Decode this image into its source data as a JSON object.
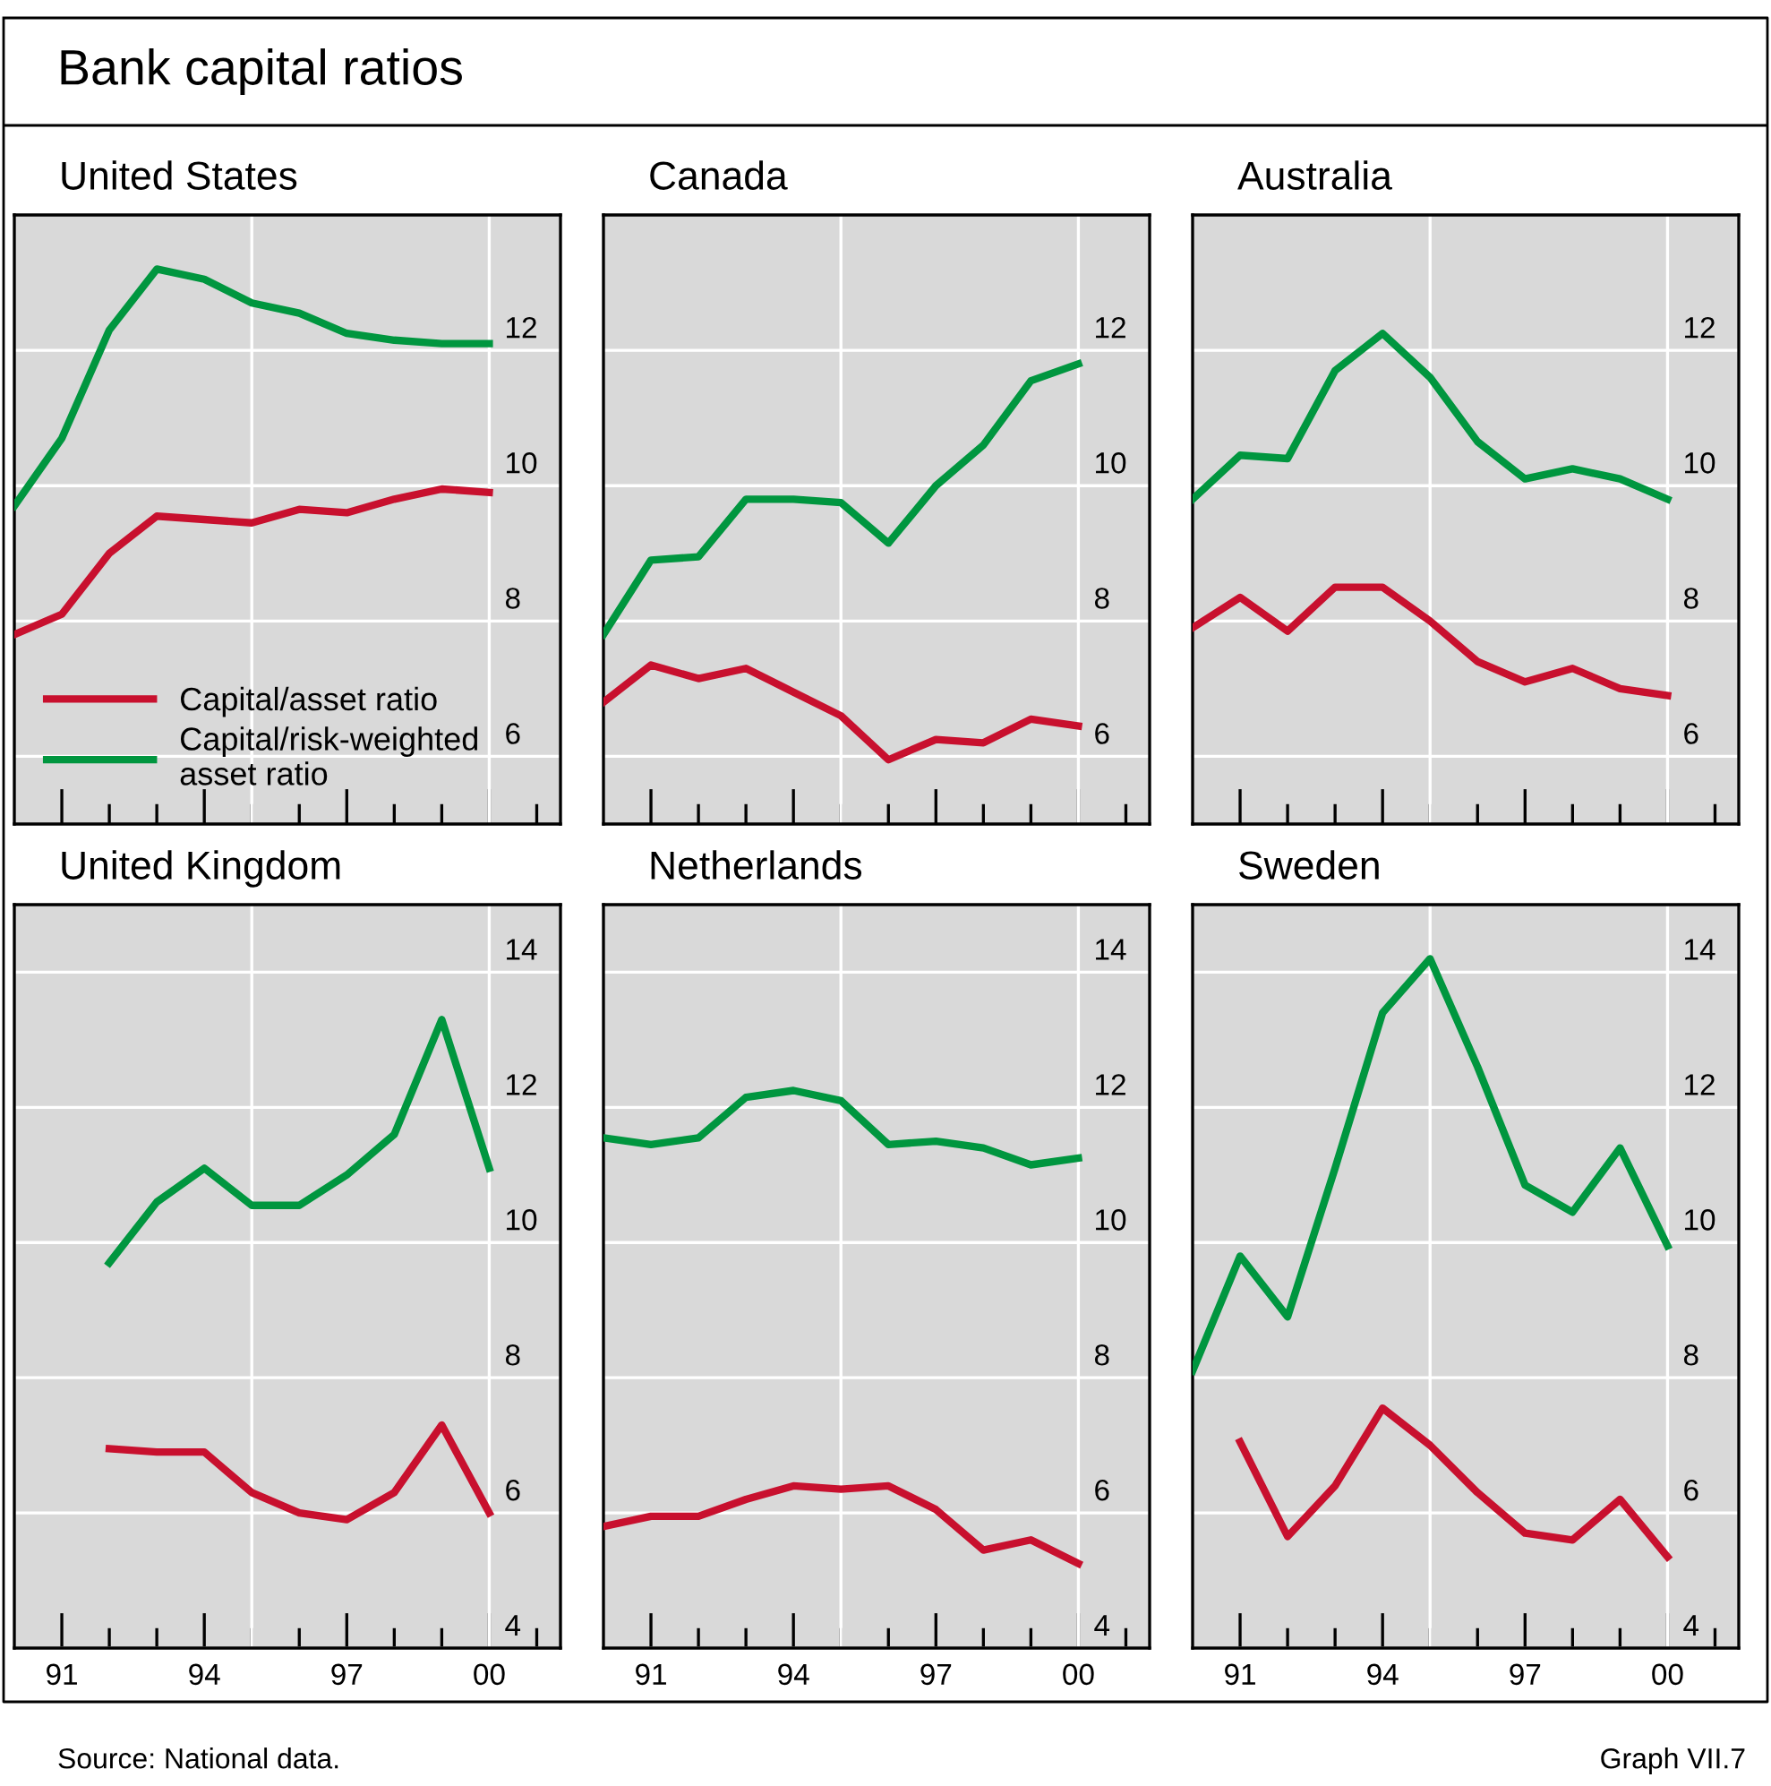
{
  "chart_data": [
    {
      "type": "line",
      "title": "United States",
      "annotations": [
        "Bank capital ratios",
        "Source: National data.",
        "Graph VII.7"
      ],
      "x": [
        1990,
        1991,
        1992,
        1993,
        1994,
        1995,
        1996,
        1997,
        1998,
        1999,
        2000
      ],
      "xlim": [
        1990,
        2001.5
      ],
      "ylim": [
        5,
        14
      ],
      "yticks": [
        6,
        8,
        10,
        12
      ],
      "xticks": [
        {
          "value": 1991,
          "label": null
        },
        {
          "value": 1992,
          "label": null
        },
        {
          "value": 1993,
          "label": null
        },
        {
          "value": 1994,
          "label": null
        },
        {
          "value": 1995,
          "label": null
        },
        {
          "value": 1996,
          "label": null
        },
        {
          "value": 1997,
          "label": null
        },
        {
          "value": 1998,
          "label": null
        },
        {
          "value": 1999,
          "label": null
        },
        {
          "value": 2000,
          "label": null
        },
        {
          "value": 2001,
          "label": null
        }
      ],
      "tick_labels": "y",
      "grid": "y",
      "legend": "bottom left",
      "ref_lines": [
        {
          "axis": "x",
          "value": 1995,
          "color": "#ffffff"
        },
        {
          "axis": "x",
          "value": 2000,
          "color": "#ffffff"
        }
      ],
      "series": [
        {
          "name": "Capital/asset ratio",
          "color": "#c8102e",
          "values": [
            7.8,
            8.1,
            9.0,
            9.55,
            9.5,
            9.45,
            9.65,
            9.6,
            9.8,
            9.95,
            9.9
          ]
        },
        {
          "name": "Capital/risk-weighted\nasset ratio",
          "color": "#00963f",
          "values": [
            9.7,
            10.7,
            12.3,
            13.2,
            13.05,
            12.7,
            12.55,
            12.25,
            12.15,
            12.1,
            12.1
          ]
        }
      ]
    },
    {
      "type": "line",
      "title": "Canada",
      "x": [
        1990,
        1991,
        1992,
        1993,
        1994,
        1995,
        1996,
        1997,
        1998,
        1999,
        2000
      ],
      "xlim": [
        1990,
        2001.5
      ],
      "ylim": [
        5,
        14
      ],
      "yticks": [
        6,
        8,
        10,
        12
      ],
      "xticks": [
        {
          "value": 1991,
          "label": null
        },
        {
          "value": 1992,
          "label": null
        },
        {
          "value": 1993,
          "label": null
        },
        {
          "value": 1994,
          "label": null
        },
        {
          "value": 1995,
          "label": null
        },
        {
          "value": 1996,
          "label": null
        },
        {
          "value": 1997,
          "label": null
        },
        {
          "value": 1998,
          "label": null
        },
        {
          "value": 1999,
          "label": null
        },
        {
          "value": 2000,
          "label": null
        },
        {
          "value": 2001,
          "label": null
        }
      ],
      "tick_labels": "y",
      "grid": "y",
      "ref_lines": [
        {
          "axis": "x",
          "value": 1995,
          "color": "#ffffff"
        },
        {
          "axis": "x",
          "value": 2000,
          "color": "#ffffff"
        }
      ],
      "series": [
        {
          "color": "#c8102e",
          "values": [
            6.8,
            7.35,
            7.15,
            7.3,
            6.95,
            6.6,
            5.95,
            6.25,
            6.2,
            6.55,
            6.45
          ]
        },
        {
          "color": "#00963f",
          "values": [
            7.8,
            8.9,
            8.95,
            9.8,
            9.8,
            9.75,
            9.15,
            10.0,
            10.6,
            11.55,
            11.8
          ]
        }
      ]
    },
    {
      "type": "line",
      "title": "Australia",
      "x": [
        1990,
        1991,
        1992,
        1993,
        1994,
        1995,
        1996,
        1997,
        1998,
        1999,
        2000
      ],
      "xlim": [
        1990,
        2001.5
      ],
      "ylim": [
        5,
        14
      ],
      "yticks": [
        6,
        8,
        10,
        12
      ],
      "xticks": [
        {
          "value": 1991,
          "label": null
        },
        {
          "value": 1992,
          "label": null
        },
        {
          "value": 1993,
          "label": null
        },
        {
          "value": 1994,
          "label": null
        },
        {
          "value": 1995,
          "label": null
        },
        {
          "value": 1996,
          "label": null
        },
        {
          "value": 1997,
          "label": null
        },
        {
          "value": 1998,
          "label": null
        },
        {
          "value": 1999,
          "label": null
        },
        {
          "value": 2000,
          "label": null
        },
        {
          "value": 2001,
          "label": null
        }
      ],
      "tick_labels": "y",
      "grid": "y",
      "ref_lines": [
        {
          "axis": "x",
          "value": 1995,
          "color": "#ffffff"
        },
        {
          "axis": "x",
          "value": 2000,
          "color": "#ffffff"
        }
      ],
      "series": [
        {
          "color": "#c8102e",
          "values": [
            7.9,
            8.35,
            7.85,
            8.5,
            8.5,
            8.0,
            7.4,
            7.1,
            7.3,
            7.0,
            6.9
          ]
        },
        {
          "color": "#00963f",
          "values": [
            9.8,
            10.45,
            10.4,
            11.7,
            12.25,
            11.6,
            10.65,
            10.1,
            10.25,
            10.1,
            9.8
          ]
        }
      ]
    },
    {
      "type": "line",
      "title": "United Kingdom",
      "xlim": [
        1990,
        2001.5
      ],
      "ylim": [
        4,
        15
      ],
      "yticks": [
        4,
        6,
        8,
        10,
        12,
        14
      ],
      "xticks": [
        {
          "value": 1991,
          "label": "91"
        },
        {
          "value": 1992,
          "label": null
        },
        {
          "value": 1993,
          "label": null
        },
        {
          "value": 1994,
          "label": "94"
        },
        {
          "value": 1995,
          "label": null
        },
        {
          "value": 1996,
          "label": null
        },
        {
          "value": 1997,
          "label": "97"
        },
        {
          "value": 1998,
          "label": null
        },
        {
          "value": 1999,
          "label": null
        },
        {
          "value": 2000,
          "label": "00"
        },
        {
          "value": 2001,
          "label": null
        }
      ],
      "grid": "y",
      "ref_lines": [
        {
          "axis": "x",
          "value": 1995,
          "color": "#ffffff"
        },
        {
          "axis": "x",
          "value": 2000,
          "color": "#ffffff"
        }
      ],
      "series": [
        {
          "color": "#c8102e",
          "x": [
            1992,
            1993,
            1994,
            1995,
            1996,
            1997,
            1998,
            1999,
            2000
          ],
          "values": [
            6.95,
            6.9,
            6.9,
            6.3,
            6.0,
            5.9,
            6.3,
            7.3,
            6.0
          ]
        },
        {
          "color": "#00963f",
          "x": [
            1992,
            1993,
            1994,
            1995,
            1996,
            1997,
            1998,
            1999,
            2000
          ],
          "values": [
            9.7,
            10.6,
            11.1,
            10.55,
            10.55,
            11.0,
            11.6,
            13.3,
            11.1
          ]
        }
      ]
    },
    {
      "type": "line",
      "title": "Netherlands",
      "x": [
        1990,
        1991,
        1992,
        1993,
        1994,
        1995,
        1996,
        1997,
        1998,
        1999,
        2000
      ],
      "xlim": [
        1990,
        2001.5
      ],
      "ylim": [
        4,
        15
      ],
      "yticks": [
        4,
        6,
        8,
        10,
        12,
        14
      ],
      "xticks": [
        {
          "value": 1991,
          "label": "91"
        },
        {
          "value": 1992,
          "label": null
        },
        {
          "value": 1993,
          "label": null
        },
        {
          "value": 1994,
          "label": "94"
        },
        {
          "value": 1995,
          "label": null
        },
        {
          "value": 1996,
          "label": null
        },
        {
          "value": 1997,
          "label": "97"
        },
        {
          "value": 1998,
          "label": null
        },
        {
          "value": 1999,
          "label": null
        },
        {
          "value": 2000,
          "label": "00"
        },
        {
          "value": 2001,
          "label": null
        }
      ],
      "grid": "y",
      "ref_lines": [
        {
          "axis": "x",
          "value": 1995,
          "color": "#ffffff"
        },
        {
          "axis": "x",
          "value": 2000,
          "color": "#ffffff"
        }
      ],
      "series": [
        {
          "color": "#c8102e",
          "values": [
            5.8,
            5.95,
            5.95,
            6.2,
            6.4,
            6.35,
            6.4,
            6.05,
            5.45,
            5.6,
            5.25
          ]
        },
        {
          "color": "#00963f",
          "values": [
            11.55,
            11.45,
            11.55,
            12.15,
            12.25,
            12.1,
            11.45,
            11.5,
            11.4,
            11.15,
            11.25
          ]
        }
      ]
    },
    {
      "type": "line",
      "title": "Sweden",
      "x": [
        1990,
        1991,
        1992,
        1993,
        1994,
        1995,
        1996,
        1997,
        1998,
        1999,
        2000
      ],
      "xlim": [
        1990,
        2001.5
      ],
      "ylim": [
        4,
        15
      ],
      "yticks": [
        4,
        6,
        8,
        10,
        12,
        14
      ],
      "xticks": [
        {
          "value": 1991,
          "label": "91"
        },
        {
          "value": 1992,
          "label": null
        },
        {
          "value": 1993,
          "label": null
        },
        {
          "value": 1994,
          "label": "94"
        },
        {
          "value": 1995,
          "label": null
        },
        {
          "value": 1996,
          "label": null
        },
        {
          "value": 1997,
          "label": "97"
        },
        {
          "value": 1998,
          "label": null
        },
        {
          "value": 1999,
          "label": null
        },
        {
          "value": 2000,
          "label": "00"
        },
        {
          "value": 2001,
          "label": null
        }
      ],
      "grid": "y",
      "ref_lines": [
        {
          "axis": "x",
          "value": 1995,
          "color": "#ffffff"
        },
        {
          "axis": "x",
          "value": 2000,
          "color": "#ffffff"
        }
      ],
      "series": [
        {
          "color": "#c8102e",
          "x": [
            1991,
            1992,
            1993,
            1994,
            1995,
            1996,
            1997,
            1998,
            1999,
            2000
          ],
          "values": [
            7.05,
            5.65,
            6.4,
            7.55,
            7.0,
            6.3,
            5.7,
            5.6,
            6.2,
            5.35
          ]
        },
        {
          "color": "#00963f",
          "values": [
            8.1,
            9.8,
            8.9,
            11.1,
            13.4,
            14.2,
            12.6,
            10.85,
            10.45,
            11.4,
            9.95
          ]
        }
      ]
    }
  ]
}
